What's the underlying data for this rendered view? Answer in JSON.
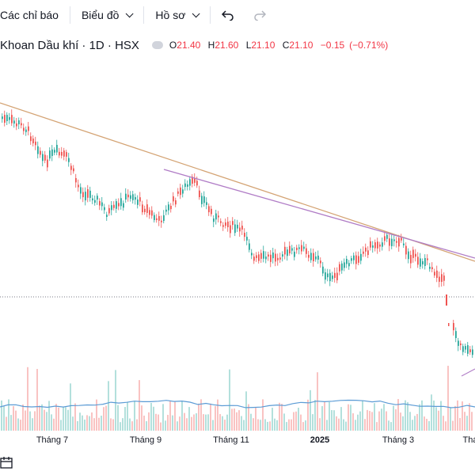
{
  "toolbar": {
    "indicators_label": "Các chỉ báo",
    "charts_label": "Biểu đồ",
    "profile_label": "Hồ sơ",
    "undo_icon": "undo-icon",
    "redo_icon": "redo-icon"
  },
  "legend": {
    "symbol_text": "Khoan Dầu khí · 1D · HSX",
    "open_label": "O",
    "open_value": "21.40",
    "high_label": "H",
    "high_value": "21.60",
    "low_label": "L",
    "low_value": "21.10",
    "close_label": "C",
    "close_value": "21.10",
    "change": "−0.15",
    "change_pct": "(−0.71%)",
    "visibility_icon": "eye-icon"
  },
  "axis": {
    "labels": [
      "Tháng 7",
      "Tháng 9",
      "Tháng 11",
      "2025",
      "Tháng 3",
      "Thá"
    ]
  },
  "colors": {
    "up": "#26a69a",
    "down": "#ef5350",
    "trend1": "#d4a373",
    "trend2": "#b07cc6",
    "volume_ma": "#5b9bd5",
    "price_line": "#787b86"
  }
}
